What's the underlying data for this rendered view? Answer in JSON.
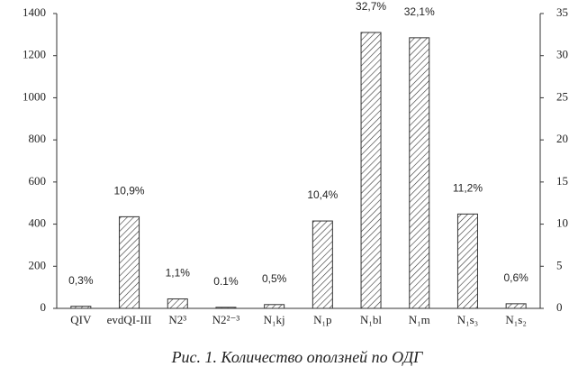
{
  "chart_data": {
    "type": "bar",
    "title": "Рис. 1. Количество оползней по ОДГ",
    "categories": [
      "QIV",
      "evdQI-III",
      "N2³",
      "N2²⁻³",
      "N₁kj",
      "N₁p",
      "N₁bl",
      "N₁m",
      "N₁s₃",
      "N₁s₂"
    ],
    "values": [
      10,
      435,
      45,
      5,
      18,
      415,
      1310,
      1285,
      448,
      22
    ],
    "percent_labels": [
      "0,3%",
      "10,9%",
      "1,1%",
      "0.1%",
      "0,5%",
      "10,4%",
      "32,7%",
      "32,1%",
      "11,2%",
      "0,6%"
    ],
    "color": "#ffffff",
    "ylim": [
      0,
      1400
    ],
    "yticks": [
      0,
      200,
      400,
      600,
      800,
      1000,
      1200,
      1400
    ],
    "y2lim": [
      0,
      35
    ],
    "y2ticks": [
      0,
      5,
      10,
      15,
      20,
      25,
      30,
      35
    ],
    "grid": false
  }
}
